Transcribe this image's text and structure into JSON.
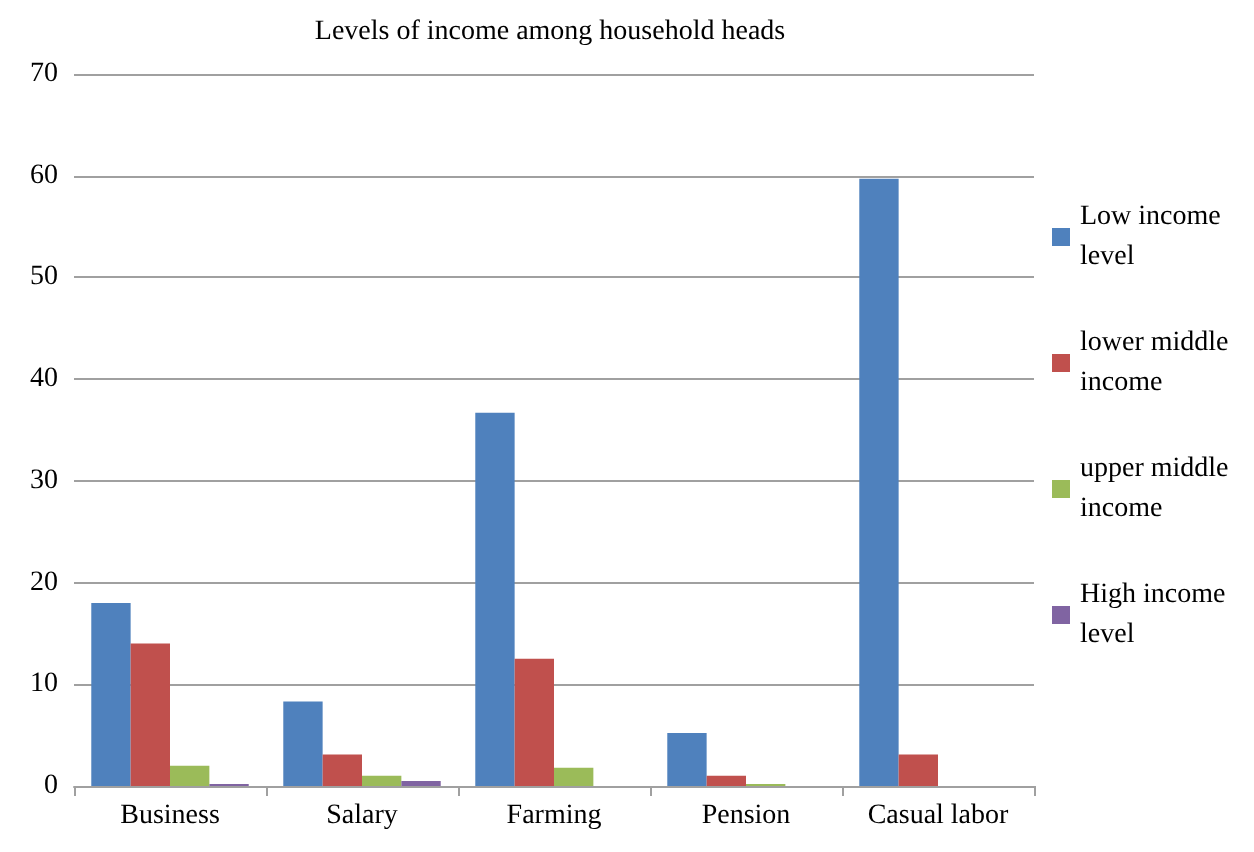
{
  "chart_data": {
    "type": "bar",
    "title": "Levels of income among household heads",
    "categories": [
      "Business",
      "Salary",
      "Farming",
      "Pension",
      "Casual labor"
    ],
    "series": [
      {
        "name": "Low income level",
        "color": "#4f81bd",
        "values": [
          18.0,
          8.3,
          36.7,
          5.2,
          59.7
        ]
      },
      {
        "name": "lower middle income",
        "color": "#c0504d",
        "values": [
          14.0,
          3.1,
          12.5,
          1.0,
          3.1
        ]
      },
      {
        "name": "upper middle income",
        "color": "#9bbb59",
        "values": [
          2.0,
          1.0,
          1.8,
          0.2,
          0
        ]
      },
      {
        "name": "High income level",
        "color": "#8064a2",
        "values": [
          0.2,
          0.5,
          0,
          0,
          0
        ]
      }
    ],
    "ylim": [
      0,
      70
    ],
    "yticks": [
      0,
      10,
      20,
      30,
      40,
      50,
      60,
      70
    ],
    "grid": "y",
    "legend": "right"
  }
}
